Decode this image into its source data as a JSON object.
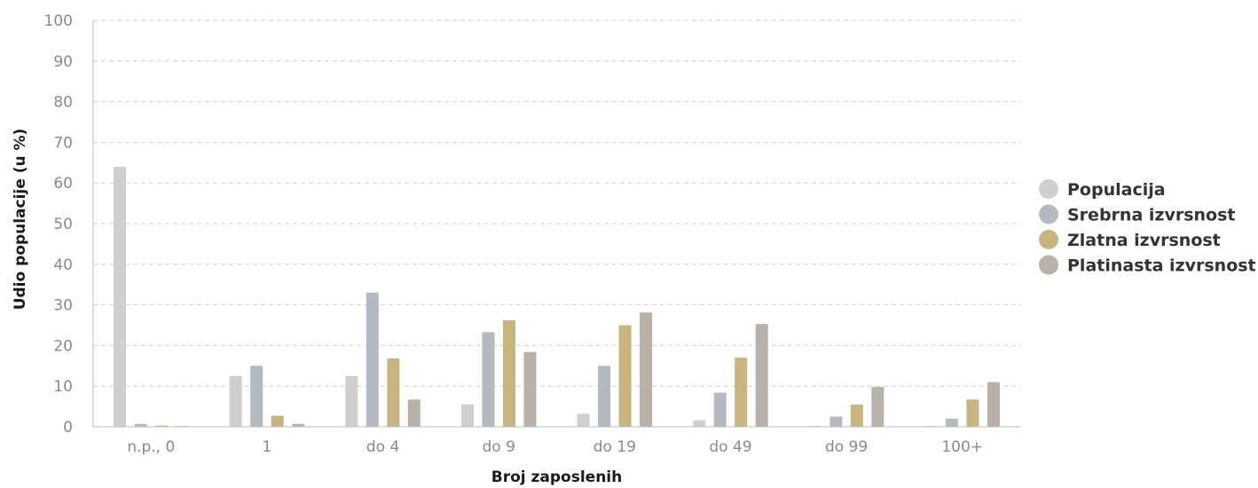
{
  "chart_data": {
    "type": "bar",
    "xlabel": "Broj zaposlenih",
    "ylabel": "Udio populacije (u %)",
    "ylim": [
      0,
      100
    ],
    "yticks": [
      0,
      10,
      20,
      30,
      40,
      50,
      60,
      70,
      80,
      90,
      100
    ],
    "grid": true,
    "legend_position": "right",
    "categories": [
      "n.p., 0",
      "1",
      "do 4",
      "do 9",
      "do 19",
      "do 49",
      "do 99",
      "100+"
    ],
    "series": [
      {
        "name": "Populacija",
        "color": "#cfcfcf",
        "values": [
          64,
          12.5,
          12.5,
          5.5,
          3.2,
          1.6,
          0.2,
          0.2
        ]
      },
      {
        "name": "Srebrna izvrsnost",
        "color": "#b4bac2",
        "values": [
          0.7,
          15,
          33,
          23.3,
          15,
          8.4,
          2.5,
          2
        ]
      },
      {
        "name": "Zlatna izvrsnost",
        "color": "#c8b47e",
        "values": [
          0.3,
          2.7,
          16.8,
          26.2,
          25,
          17,
          5.5,
          6.7
        ]
      },
      {
        "name": "Platinasta izvrsnost",
        "color": "#b8b1a8",
        "values": [
          0.1,
          0.7,
          6.7,
          18.4,
          28.1,
          25.3,
          9.8,
          11
        ]
      }
    ]
  }
}
